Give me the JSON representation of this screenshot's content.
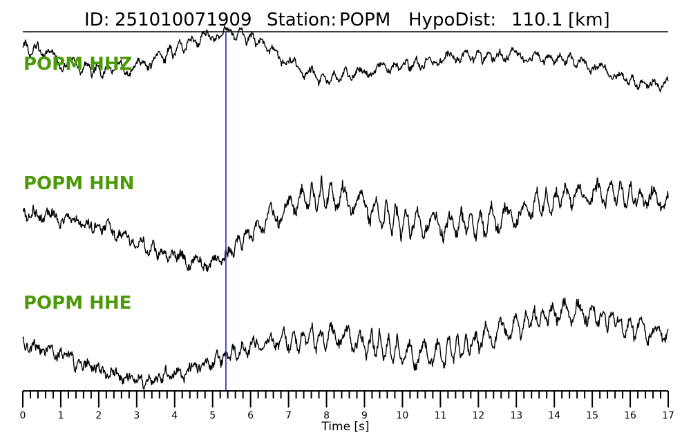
{
  "title": {
    "id_label": "ID:",
    "id_value": "251010071909",
    "station_label": "Station:",
    "station_value": "POPM",
    "hypodist_label": "HypoDist:",
    "hypodist_value": "110.1",
    "hypodist_unit": "[km]"
  },
  "colors": {
    "trace": "#000000",
    "label": "#4c9a0a",
    "marker": "#2222cc",
    "axis": "#000000"
  },
  "chart_data": {
    "type": "line",
    "xlabel": "Time [s]",
    "ylabel": "",
    "xlim": [
      0,
      17
    ],
    "x_ticks": [
      0,
      1,
      2,
      3,
      4,
      5,
      6,
      7,
      8,
      9,
      10,
      11,
      12,
      13,
      14,
      15,
      16,
      17
    ],
    "minor_tick_step": 0.2,
    "grid": false,
    "pick_time": 5.35,
    "series": [
      {
        "name": "POPM HHZ",
        "noise": 0.09,
        "envelope": [
          [
            0,
            0.55
          ],
          [
            16,
            0.4
          ],
          [
            17,
            0.4
          ]
        ],
        "x": [
          0,
          0.5,
          1,
          1.5,
          2,
          2.5,
          3,
          3.5,
          4,
          4.5,
          5,
          5.5,
          6,
          6.5,
          7,
          7.5,
          8,
          8.5,
          9,
          9.5,
          10,
          10.5,
          11,
          11.5,
          12,
          12.5,
          13,
          13.5,
          14,
          14.5,
          15,
          15.5,
          16,
          16.5,
          17
        ],
        "y": [
          0.55,
          0.45,
          0.15,
          -0.05,
          -0.1,
          -0.1,
          -0.05,
          0.2,
          0.45,
          0.75,
          0.95,
          1.0,
          0.85,
          0.5,
          0.1,
          -0.25,
          -0.4,
          -0.3,
          -0.2,
          -0.05,
          0.0,
          0.05,
          0.15,
          0.25,
          0.3,
          0.3,
          0.3,
          0.25,
          0.2,
          0.15,
          0.0,
          -0.25,
          -0.45,
          -0.6,
          -0.55
        ]
      },
      {
        "name": "POPM HHN",
        "noise": 0.1,
        "envelope": [
          [
            0,
            0.25
          ],
          [
            5.3,
            0.35
          ],
          [
            6.5,
            0.6
          ],
          [
            7.5,
            0.8
          ],
          [
            9,
            0.85
          ],
          [
            12,
            0.85
          ],
          [
            14,
            0.7
          ],
          [
            17,
            0.55
          ]
        ],
        "x": [
          0,
          0.5,
          1,
          1.5,
          2,
          2.5,
          3,
          3.5,
          4,
          4.5,
          5,
          5.3,
          5.5,
          6,
          6.5,
          7,
          7.5,
          8,
          8.5,
          9,
          9.5,
          10,
          10.5,
          11,
          11.5,
          12,
          12.5,
          13,
          13.5,
          14,
          14.5,
          15,
          15.5,
          16,
          16.5,
          17
        ],
        "y": [
          0.2,
          0.15,
          0.1,
          0.0,
          -0.1,
          -0.25,
          -0.4,
          -0.55,
          -0.7,
          -0.8,
          -0.85,
          -0.75,
          -0.55,
          -0.25,
          0.1,
          0.35,
          0.5,
          0.55,
          0.5,
          0.35,
          0.15,
          0.0,
          -0.05,
          -0.05,
          -0.05,
          -0.05,
          0.05,
          0.15,
          0.3,
          0.45,
          0.55,
          0.6,
          0.6,
          0.55,
          0.5,
          0.45
        ]
      },
      {
        "name": "POPM HHE",
        "noise": 0.1,
        "envelope": [
          [
            0,
            0.25
          ],
          [
            5.3,
            0.3
          ],
          [
            6.5,
            0.55
          ],
          [
            8,
            0.7
          ],
          [
            11,
            0.7
          ],
          [
            13,
            0.6
          ],
          [
            15,
            0.6
          ],
          [
            17,
            0.4
          ]
        ],
        "x": [
          0,
          0.5,
          1,
          1.5,
          2,
          2.5,
          3,
          3.5,
          4,
          4.5,
          5,
          5.5,
          6,
          6.5,
          7,
          7.5,
          8,
          8.5,
          9,
          9.5,
          10,
          10.5,
          11,
          11.5,
          12,
          12.5,
          13,
          13.5,
          14,
          14.5,
          15,
          15.5,
          16,
          16.5,
          17
        ],
        "y": [
          0.1,
          -0.05,
          -0.15,
          -0.3,
          -0.45,
          -0.6,
          -0.7,
          -0.65,
          -0.55,
          -0.45,
          -0.3,
          -0.15,
          0.0,
          0.1,
          0.15,
          0.2,
          0.25,
          0.2,
          0.1,
          0.0,
          -0.1,
          -0.15,
          -0.1,
          0.0,
          0.15,
          0.3,
          0.45,
          0.6,
          0.7,
          0.75,
          0.7,
          0.55,
          0.4,
          0.3,
          0.25
        ]
      }
    ]
  }
}
